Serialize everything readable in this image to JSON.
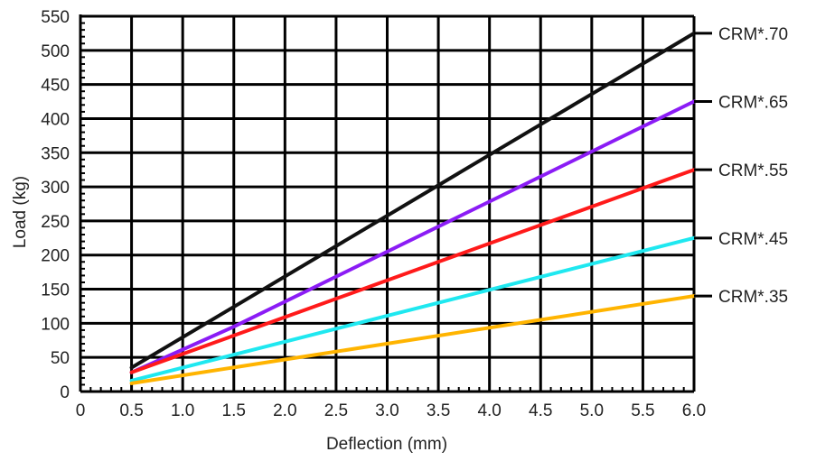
{
  "chart_data": {
    "type": "line",
    "xlabel": "Deflection (mm)",
    "ylabel": "Load (kg)",
    "xlim": [
      0,
      6.0
    ],
    "ylim": [
      0,
      550
    ],
    "x_ticks": [
      "0",
      "0.5",
      "1.0",
      "1.5",
      "2.0",
      "2.5",
      "3.0",
      "3.5",
      "4.0",
      "4.5",
      "5.0",
      "5.5",
      "6.0"
    ],
    "x_tick_values": [
      0,
      0.5,
      1.0,
      1.5,
      2.0,
      2.5,
      3.0,
      3.5,
      4.0,
      4.5,
      5.0,
      5.5,
      6.0
    ],
    "y_ticks": [
      "0",
      "50",
      "100",
      "150",
      "200",
      "250",
      "300",
      "350",
      "400",
      "450",
      "500",
      "550"
    ],
    "y_tick_values": [
      0,
      50,
      100,
      150,
      200,
      250,
      300,
      350,
      400,
      450,
      500,
      550
    ],
    "grid": true,
    "legend": "right-end labels",
    "series": [
      {
        "name": "CRM*.70",
        "color": "#111111",
        "x": [
          0.5,
          6.0
        ],
        "y": [
          35,
          525
        ]
      },
      {
        "name": "CRM*.65",
        "color": "#8b1cf5",
        "x": [
          0.5,
          1.5,
          6.0
        ],
        "y": [
          28,
          95,
          425
        ]
      },
      {
        "name": "CRM*.55",
        "color": "#ff1a1a",
        "x": [
          0.5,
          6.0
        ],
        "y": [
          28,
          325
        ]
      },
      {
        "name": "CRM*.45",
        "color": "#1fe8f0",
        "x": [
          0.5,
          6.0
        ],
        "y": [
          16,
          225
        ]
      },
      {
        "name": "CRM*.35",
        "color": "#ffb400",
        "x": [
          0.5,
          6.0
        ],
        "y": [
          12,
          140
        ]
      }
    ]
  }
}
